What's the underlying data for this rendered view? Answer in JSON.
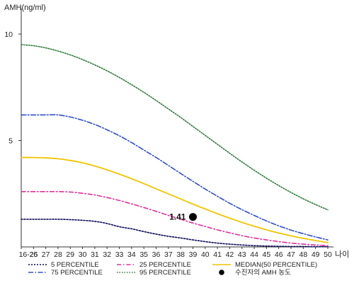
{
  "chart_data": {
    "type": "line",
    "ylabel": "AMH(ng/ml)",
    "xlabel": "나이",
    "categories": [
      "16-25",
      "26",
      "27",
      "28",
      "29",
      "30",
      "31",
      "32",
      "33",
      "34",
      "35",
      "36",
      "37",
      "38",
      "39",
      "40",
      "41",
      "42",
      "43",
      "44",
      "45",
      "46",
      "47",
      "48",
      "49",
      "50"
    ],
    "yticks": [
      "5",
      "10"
    ],
    "ylim": [
      0,
      11
    ],
    "series": [
      {
        "name": "5 PERCENTILE",
        "color": "#0a0a5a",
        "dash": "2,2",
        "values": [
          1.3,
          1.3,
          1.3,
          1.3,
          1.28,
          1.25,
          1.2,
          1.1,
          0.95,
          0.85,
          0.72,
          0.6,
          0.5,
          0.42,
          0.33,
          0.25,
          0.18,
          0.13,
          0.09,
          0.06,
          0.04,
          0.03,
          0.02,
          0.02,
          0.01,
          0.01
        ]
      },
      {
        "name": "25 PERCENTILE",
        "color": "#e0309a",
        "dash": "6,3,1.5,3",
        "values": [
          2.6,
          2.6,
          2.6,
          2.6,
          2.58,
          2.52,
          2.44,
          2.32,
          2.18,
          2.02,
          1.85,
          1.67,
          1.48,
          1.3,
          1.12,
          0.96,
          0.8,
          0.66,
          0.53,
          0.42,
          0.33,
          0.25,
          0.18,
          0.13,
          0.09,
          0.06
        ]
      },
      {
        "name": "75 PERCENTILE",
        "color": "#3050c8",
        "dash": "7,2.5,1.5,2.5",
        "values": [
          6.2,
          6.2,
          6.2,
          6.2,
          6.1,
          5.95,
          5.75,
          5.5,
          5.22,
          4.9,
          4.55,
          4.2,
          3.83,
          3.45,
          3.08,
          2.72,
          2.38,
          2.05,
          1.75,
          1.48,
          1.22,
          0.99,
          0.79,
          0.62,
          0.47,
          0.33
        ]
      },
      {
        "name": "95 PERCENTILE",
        "color": "#2e7a3a",
        "dash": "1.5,2",
        "values": [
          9.5,
          9.45,
          9.35,
          9.2,
          9.02,
          8.8,
          8.55,
          8.27,
          7.96,
          7.62,
          7.26,
          6.88,
          6.48,
          6.08,
          5.66,
          5.24,
          4.82,
          4.4,
          3.99,
          3.6,
          3.23,
          2.88,
          2.56,
          2.26,
          1.99,
          1.74
        ]
      },
      {
        "name": "MEDIAN(50 PERCENTILE)",
        "color": "#f2c400",
        "dash": "",
        "values": [
          4.2,
          4.2,
          4.18,
          4.14,
          4.06,
          3.95,
          3.8,
          3.62,
          3.42,
          3.2,
          2.97,
          2.73,
          2.49,
          2.25,
          2.01,
          1.78,
          1.56,
          1.35,
          1.15,
          0.97,
          0.8,
          0.65,
          0.52,
          0.4,
          0.3,
          0.2
        ]
      }
    ],
    "points": [
      {
        "name": "수진자의 AMH 농도",
        "x": "39",
        "y": 1.41,
        "label": "1.41",
        "color": "#000000"
      }
    ],
    "legend": {
      "position": "bottom"
    }
  }
}
